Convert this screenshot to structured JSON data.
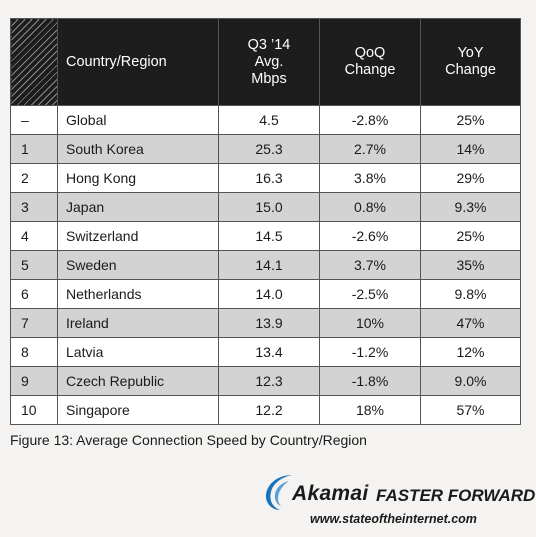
{
  "chart_data": {
    "type": "table",
    "columns": [
      "",
      "Country/Region",
      "Q3 '14 Avg. Mbps",
      "QoQ Change",
      "YoY Change"
    ],
    "header": {
      "rank": "",
      "country": "Country/Region",
      "avg_line1": "Q3 ’14",
      "avg_line2": "Avg.",
      "avg_line3": "Mbps",
      "qoq_line1": "QoQ",
      "qoq_line2": "Change",
      "yoy_line1": "YoY",
      "yoy_line2": "Change"
    },
    "rows": [
      {
        "rank": "–",
        "country": "Global",
        "avg": "4.5",
        "qoq": "-2.8%",
        "yoy": "25%"
      },
      {
        "rank": "1",
        "country": "South Korea",
        "avg": "25.3",
        "qoq": "2.7%",
        "yoy": "14%"
      },
      {
        "rank": "2",
        "country": "Hong Kong",
        "avg": "16.3",
        "qoq": "3.8%",
        "yoy": "29%"
      },
      {
        "rank": "3",
        "country": "Japan",
        "avg": "15.0",
        "qoq": "0.8%",
        "yoy": "9.3%"
      },
      {
        "rank": "4",
        "country": "Switzerland",
        "avg": "14.5",
        "qoq": "-2.6%",
        "yoy": "25%"
      },
      {
        "rank": "5",
        "country": "Sweden",
        "avg": "14.1",
        "qoq": "3.7%",
        "yoy": "35%"
      },
      {
        "rank": "6",
        "country": "Netherlands",
        "avg": "14.0",
        "qoq": "-2.5%",
        "yoy": "9.8%"
      },
      {
        "rank": "7",
        "country": "Ireland",
        "avg": "13.9",
        "qoq": "10%",
        "yoy": "47%"
      },
      {
        "rank": "8",
        "country": "Latvia",
        "avg": "13.4",
        "qoq": "-1.2%",
        "yoy": "12%"
      },
      {
        "rank": "9",
        "country": "Czech Republic",
        "avg": "12.3",
        "qoq": "-1.8%",
        "yoy": "9.0%"
      },
      {
        "rank": "10",
        "country": "Singapore",
        "avg": "12.2",
        "qoq": "18%",
        "yoy": "57%"
      }
    ],
    "caption": "Figure 13: Average Connection Speed by Country/Region"
  },
  "branding": {
    "name": "Akamai",
    "tagline": "FASTER FORWARD",
    "url": "www.stateoftheinternet.com"
  },
  "colors": {
    "header_bg": "#1d1d1d",
    "shaded_row": "#d3d3d3",
    "logo_blue": "#1a73b8"
  }
}
